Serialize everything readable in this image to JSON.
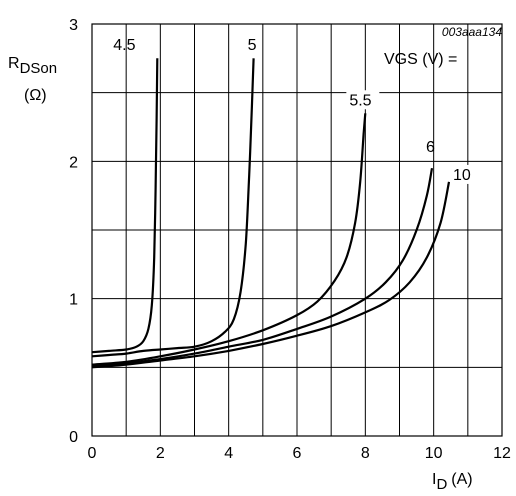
{
  "chart_data": {
    "type": "line",
    "figure_code": "003aaa134",
    "ylabel": {
      "main": "R",
      "sub": "DSon",
      "unit": "(Ω)"
    },
    "xlabel": {
      "main": "I",
      "sub": "D",
      "unit": "(A)"
    },
    "xlim": [
      0,
      12
    ],
    "ylim": [
      0,
      3
    ],
    "x_ticks": [
      0,
      2,
      4,
      6,
      8,
      10,
      12
    ],
    "y_ticks": [
      0,
      1,
      2,
      3
    ],
    "x_minor_step": 1,
    "y_minor_step": 0.5,
    "grid": true,
    "legend_title": "VGS (V) =",
    "series": [
      {
        "name": "4.5",
        "points": [
          [
            0,
            0.61
          ],
          [
            0.5,
            0.62
          ],
          [
            1,
            0.63
          ],
          [
            1.3,
            0.65
          ],
          [
            1.5,
            0.69
          ],
          [
            1.65,
            0.78
          ],
          [
            1.75,
            0.95
          ],
          [
            1.82,
            1.3
          ],
          [
            1.86,
            1.8
          ],
          [
            1.89,
            2.3
          ],
          [
            1.91,
            2.75
          ]
        ]
      },
      {
        "name": "5",
        "points": [
          [
            0,
            0.58
          ],
          [
            0.5,
            0.59
          ],
          [
            1,
            0.6
          ],
          [
            1.5,
            0.62
          ],
          [
            2,
            0.63
          ],
          [
            2.5,
            0.64
          ],
          [
            3,
            0.65
          ],
          [
            3.5,
            0.69
          ],
          [
            3.9,
            0.76
          ],
          [
            4.15,
            0.85
          ],
          [
            4.35,
            1.05
          ],
          [
            4.5,
            1.4
          ],
          [
            4.6,
            1.9
          ],
          [
            4.68,
            2.4
          ],
          [
            4.73,
            2.75
          ]
        ]
      },
      {
        "name": "5.5",
        "points": [
          [
            0,
            0.52
          ],
          [
            1,
            0.54
          ],
          [
            2,
            0.58
          ],
          [
            3,
            0.63
          ],
          [
            4,
            0.69
          ],
          [
            5,
            0.77
          ],
          [
            6,
            0.88
          ],
          [
            6.6,
            0.98
          ],
          [
            7.1,
            1.13
          ],
          [
            7.45,
            1.3
          ],
          [
            7.7,
            1.55
          ],
          [
            7.85,
            1.85
          ],
          [
            7.95,
            2.2
          ],
          [
            8.0,
            2.35
          ]
        ]
      },
      {
        "name": "6",
        "points": [
          [
            0,
            0.51
          ],
          [
            1,
            0.53
          ],
          [
            2,
            0.56
          ],
          [
            3,
            0.6
          ],
          [
            4,
            0.65
          ],
          [
            5,
            0.7
          ],
          [
            6,
            0.78
          ],
          [
            7,
            0.87
          ],
          [
            8,
            1.0
          ],
          [
            8.6,
            1.12
          ],
          [
            9.1,
            1.28
          ],
          [
            9.5,
            1.5
          ],
          [
            9.8,
            1.75
          ],
          [
            9.95,
            1.95
          ]
        ]
      },
      {
        "name": "10",
        "points": [
          [
            0,
            0.5
          ],
          [
            1,
            0.52
          ],
          [
            2,
            0.55
          ],
          [
            3,
            0.58
          ],
          [
            4,
            0.62
          ],
          [
            5,
            0.67
          ],
          [
            6,
            0.73
          ],
          [
            7,
            0.8
          ],
          [
            8,
            0.9
          ],
          [
            8.7,
            0.99
          ],
          [
            9.3,
            1.12
          ],
          [
            9.8,
            1.3
          ],
          [
            10.2,
            1.55
          ],
          [
            10.45,
            1.85
          ]
        ]
      }
    ]
  }
}
